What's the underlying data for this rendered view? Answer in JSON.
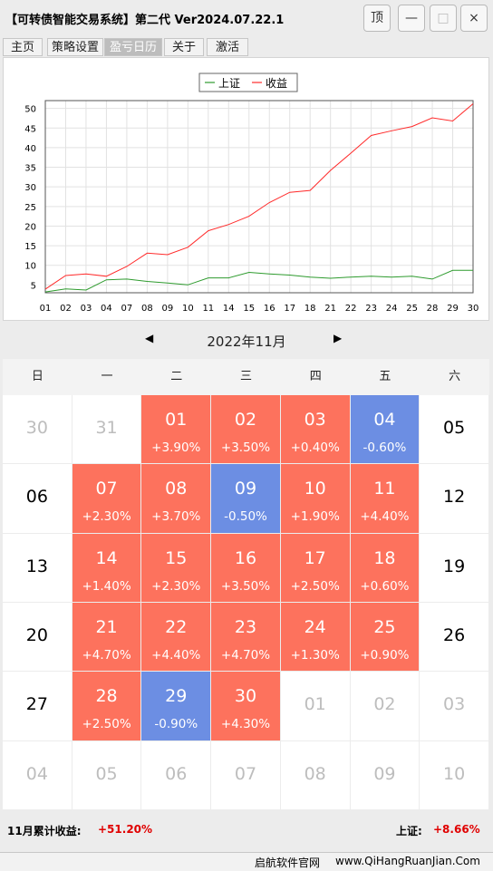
{
  "window": {
    "title": "【可转债智能交易系统】第二代 Ver2024.07.22.1",
    "btn_top": "顶",
    "btn_min": "—",
    "btn_max": "□",
    "btn_close": "×"
  },
  "tabs": [
    "主页",
    "策略设置",
    "盈亏日历",
    "关于",
    "激活"
  ],
  "active_tab": "盈亏日历",
  "colors": {
    "profit": "#fd725d",
    "loss": "#6c8ee3",
    "index_line": "#2e9b2e",
    "return_line": "#ff2a2a",
    "summary_value": "#e00000"
  },
  "chart_data": {
    "type": "line",
    "categories": [
      "01",
      "02",
      "03",
      "04",
      "07",
      "08",
      "09",
      "10",
      "11",
      "14",
      "15",
      "16",
      "17",
      "18",
      "21",
      "22",
      "23",
      "24",
      "25",
      "28",
      "29",
      "30"
    ],
    "series": [
      {
        "name": "上证",
        "color": "#2e9b2e",
        "values": [
          3.2,
          4.0,
          3.7,
          6.3,
          6.5,
          5.9,
          5.5,
          5.0,
          6.8,
          6.8,
          8.2,
          7.8,
          7.5,
          7.0,
          6.7,
          7.0,
          7.2,
          7.0,
          7.2,
          6.5,
          8.7,
          8.7
        ]
      },
      {
        "name": "收益",
        "color": "#ff2a2a",
        "values": [
          3.9,
          7.4,
          7.8,
          7.2,
          9.7,
          13.1,
          12.7,
          14.6,
          18.8,
          20.4,
          22.5,
          26.0,
          28.6,
          29.1,
          34.2,
          38.6,
          43.1,
          44.3,
          45.4,
          47.6,
          46.8,
          51.2
        ]
      }
    ],
    "ylim": [
      3,
      52
    ],
    "yticks": [
      5,
      10,
      15,
      20,
      25,
      30,
      35,
      40,
      45,
      50
    ],
    "legend": "top-center",
    "grid": true
  },
  "calendar": {
    "month_label": "2022年11月",
    "prev_label": "◀",
    "next_label": "▶",
    "weekdays": [
      "日",
      "一",
      "二",
      "三",
      "四",
      "五",
      "六"
    ],
    "rows": [
      [
        {
          "d": "30",
          "s": "other"
        },
        {
          "d": "31",
          "s": "other"
        },
        {
          "d": "01",
          "s": "up",
          "p": "+3.90%"
        },
        {
          "d": "02",
          "s": "up",
          "p": "+3.50%"
        },
        {
          "d": "03",
          "s": "up",
          "p": "+0.40%"
        },
        {
          "d": "04",
          "s": "down",
          "p": "-0.60%"
        },
        {
          "d": "05",
          "s": "plain"
        }
      ],
      [
        {
          "d": "06",
          "s": "plain"
        },
        {
          "d": "07",
          "s": "up",
          "p": "+2.30%"
        },
        {
          "d": "08",
          "s": "up",
          "p": "+3.70%"
        },
        {
          "d": "09",
          "s": "down",
          "p": "-0.50%"
        },
        {
          "d": "10",
          "s": "up",
          "p": "+1.90%"
        },
        {
          "d": "11",
          "s": "up",
          "p": "+4.40%"
        },
        {
          "d": "12",
          "s": "plain"
        }
      ],
      [
        {
          "d": "13",
          "s": "plain"
        },
        {
          "d": "14",
          "s": "up",
          "p": "+1.40%"
        },
        {
          "d": "15",
          "s": "up",
          "p": "+2.30%"
        },
        {
          "d": "16",
          "s": "up",
          "p": "+3.50%"
        },
        {
          "d": "17",
          "s": "up",
          "p": "+2.50%"
        },
        {
          "d": "18",
          "s": "up",
          "p": "+0.60%"
        },
        {
          "d": "19",
          "s": "plain"
        }
      ],
      [
        {
          "d": "20",
          "s": "plain"
        },
        {
          "d": "21",
          "s": "up",
          "p": "+4.70%"
        },
        {
          "d": "22",
          "s": "up",
          "p": "+4.40%"
        },
        {
          "d": "23",
          "s": "up",
          "p": "+4.70%"
        },
        {
          "d": "24",
          "s": "up",
          "p": "+1.30%"
        },
        {
          "d": "25",
          "s": "up",
          "p": "+0.90%"
        },
        {
          "d": "26",
          "s": "plain"
        }
      ],
      [
        {
          "d": "27",
          "s": "plain"
        },
        {
          "d": "28",
          "s": "up",
          "p": "+2.50%"
        },
        {
          "d": "29",
          "s": "down",
          "p": "-0.90%"
        },
        {
          "d": "30",
          "s": "up",
          "p": "+4.30%"
        },
        {
          "d": "01",
          "s": "other"
        },
        {
          "d": "02",
          "s": "other"
        },
        {
          "d": "03",
          "s": "other"
        }
      ],
      [
        {
          "d": "04",
          "s": "other"
        },
        {
          "d": "05",
          "s": "other"
        },
        {
          "d": "06",
          "s": "other"
        },
        {
          "d": "07",
          "s": "other"
        },
        {
          "d": "08",
          "s": "other"
        },
        {
          "d": "09",
          "s": "other"
        },
        {
          "d": "10",
          "s": "other"
        }
      ]
    ]
  },
  "summary": {
    "month_label": "11月累计收益:",
    "month_value": "+51.20%",
    "index_label": "上证:",
    "index_value": "+8.66%"
  },
  "footer": {
    "site_name": "启航软件官网",
    "site_url": "www.QiHangRuanJian.Com"
  }
}
